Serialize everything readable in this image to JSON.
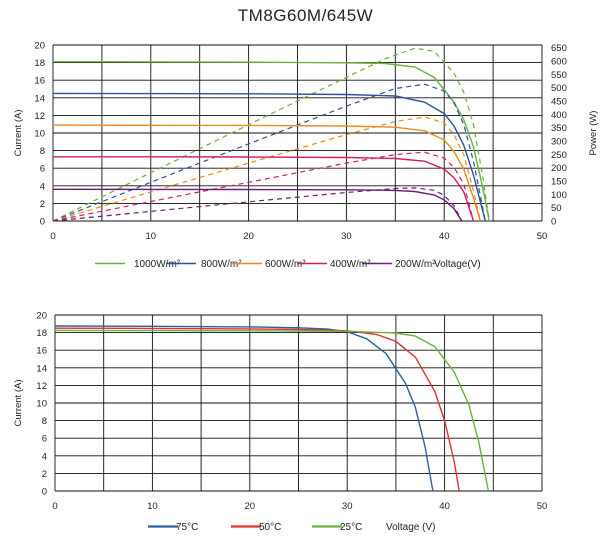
{
  "page_title": "TM8G60M/645W",
  "chart_data": [
    {
      "type": "line",
      "title": "TM8G60M/645W",
      "xlabel": "Voltage(V)",
      "ylabel": "Current (A)",
      "y2label": "Power (W)",
      "xlim": [
        0,
        50
      ],
      "ylim": [
        0,
        20
      ],
      "y2lim": [
        0,
        660
      ],
      "x_ticks": [
        "0",
        "10",
        "20",
        "30",
        "40",
        "50"
      ],
      "y_ticks": [
        "0",
        "2",
        "4",
        "6",
        "8",
        "10",
        "12",
        "14",
        "16",
        "18",
        "20"
      ],
      "y2_ticks": [
        "0",
        "50",
        "100",
        "150",
        "200",
        "250",
        "300",
        "350",
        "400",
        "450",
        "500",
        "550",
        "600",
        "650"
      ],
      "grid": true,
      "legend_position": "bottom",
      "series": [
        {
          "name": "1000W/m²",
          "color": "#6ab23e",
          "isc": 18.1,
          "voc": 44.6,
          "iv": [
            [
              0,
              18.1
            ],
            [
              10,
              18.08
            ],
            [
              20,
              18.05
            ],
            [
              30,
              17.98
            ],
            [
              34,
              17.9
            ],
            [
              37,
              17.5
            ],
            [
              39,
              16.3
            ],
            [
              41,
              13.5
            ],
            [
              42,
              11.5
            ],
            [
              43,
              8.4
            ],
            [
              44,
              3.5
            ],
            [
              44.6,
              0
            ]
          ],
          "pv": [
            [
              0,
              0
            ],
            [
              10,
              181
            ],
            [
              20,
              361
            ],
            [
              30,
              539
            ],
            [
              34,
              609
            ],
            [
              37,
              648
            ],
            [
              39,
              636
            ],
            [
              41,
              554
            ],
            [
              42,
              483
            ],
            [
              43,
              361
            ],
            [
              44,
              154
            ],
            [
              44.6,
              0
            ]
          ]
        },
        {
          "name": "800W/m²",
          "color": "#2d4fa0",
          "isc": 14.5,
          "voc": 44.2,
          "iv": [
            [
              0,
              14.5
            ],
            [
              10,
              14.48
            ],
            [
              20,
              14.45
            ],
            [
              30,
              14.38
            ],
            [
              35,
              14.2
            ],
            [
              38,
              13.5
            ],
            [
              40,
              12.2
            ],
            [
              41,
              10.8
            ],
            [
              42,
              8.6
            ],
            [
              43,
              5.2
            ],
            [
              44.2,
              0
            ]
          ],
          "pv": [
            [
              0,
              0
            ],
            [
              10,
              145
            ],
            [
              20,
              289
            ],
            [
              30,
              431
            ],
            [
              35,
              497
            ],
            [
              38,
              513
            ],
            [
              40,
              488
            ],
            [
              41,
              443
            ],
            [
              42,
              361
            ],
            [
              43,
              224
            ],
            [
              44.2,
              0
            ]
          ]
        },
        {
          "name": "600W/m²",
          "color": "#ef8a1a",
          "isc": 10.9,
          "voc": 43.7,
          "iv": [
            [
              0,
              10.9
            ],
            [
              10,
              10.88
            ],
            [
              20,
              10.86
            ],
            [
              30,
              10.8
            ],
            [
              35,
              10.66
            ],
            [
              38,
              10.25
            ],
            [
              40,
              9.2
            ],
            [
              41,
              7.9
            ],
            [
              42,
              5.9
            ],
            [
              43,
              2.6
            ],
            [
              43.7,
              0
            ]
          ],
          "pv": [
            [
              0,
              0
            ],
            [
              10,
              109
            ],
            [
              20,
              217
            ],
            [
              30,
              324
            ],
            [
              35,
              373
            ],
            [
              38,
              390
            ],
            [
              40,
              368
            ],
            [
              41,
              324
            ],
            [
              42,
              248
            ],
            [
              43,
              112
            ],
            [
              43.7,
              0
            ]
          ]
        },
        {
          "name": "400W/m²",
          "color": "#d81b60",
          "isc": 7.3,
          "voc": 43.0,
          "iv": [
            [
              0,
              7.3
            ],
            [
              10,
              7.29
            ],
            [
              20,
              7.27
            ],
            [
              30,
              7.22
            ],
            [
              35,
              7.1
            ],
            [
              38,
              6.8
            ],
            [
              40,
              5.9
            ],
            [
              41,
              4.9
            ],
            [
              42,
              3.3
            ],
            [
              43,
              0
            ]
          ],
          "pv": [
            [
              0,
              0
            ],
            [
              10,
              73
            ],
            [
              20,
              145
            ],
            [
              30,
              217
            ],
            [
              35,
              249
            ],
            [
              38,
              258
            ],
            [
              40,
              236
            ],
            [
              41,
              201
            ],
            [
              42,
              139
            ],
            [
              43,
              0
            ]
          ]
        },
        {
          "name": "200W/m²",
          "color": "#6a1b7a",
          "isc": 3.6,
          "voc": 41.8,
          "iv": [
            [
              0,
              3.6
            ],
            [
              10,
              3.59
            ],
            [
              20,
              3.58
            ],
            [
              30,
              3.55
            ],
            [
              35,
              3.48
            ],
            [
              37,
              3.35
            ],
            [
              39,
              2.95
            ],
            [
              40,
              2.4
            ],
            [
              41,
              1.4
            ],
            [
              41.8,
              0
            ]
          ],
          "pv": [
            [
              0,
              0
            ],
            [
              10,
              36
            ],
            [
              20,
              72
            ],
            [
              30,
              107
            ],
            [
              35,
              122
            ],
            [
              37,
              124
            ],
            [
              39,
              115
            ],
            [
              40,
              96
            ],
            [
              41,
              57
            ],
            [
              41.8,
              0
            ]
          ]
        }
      ]
    },
    {
      "type": "line",
      "title": "",
      "xlabel": "Voltage (V)",
      "ylabel": "Current (A)",
      "xlim": [
        0,
        50
      ],
      "ylim": [
        0,
        20
      ],
      "x_ticks": [
        "0",
        "10",
        "20",
        "30",
        "40",
        "50"
      ],
      "y_ticks": [
        "0",
        "2",
        "4",
        "6",
        "8",
        "10",
        "12",
        "14",
        "16",
        "18",
        "20"
      ],
      "grid": true,
      "legend_position": "bottom",
      "series": [
        {
          "name": "75°C",
          "color": "#2d5f9e",
          "iv": [
            [
              0,
              18.75
            ],
            [
              10,
              18.72
            ],
            [
              20,
              18.65
            ],
            [
              25,
              18.55
            ],
            [
              28,
              18.4
            ],
            [
              30,
              18.1
            ],
            [
              32,
              17.3
            ],
            [
              34,
              15.6
            ],
            [
              36,
              12.2
            ],
            [
              37,
              9.5
            ],
            [
              38,
              5.0
            ],
            [
              38.8,
              0
            ]
          ]
        },
        {
          "name": "50°C",
          "color": "#e03131",
          "iv": [
            [
              0,
              18.5
            ],
            [
              10,
              18.48
            ],
            [
              20,
              18.42
            ],
            [
              25,
              18.35
            ],
            [
              30,
              18.2
            ],
            [
              33,
              17.8
            ],
            [
              35,
              17.0
            ],
            [
              37,
              15.2
            ],
            [
              39,
              11.3
            ],
            [
              40,
              8.0
            ],
            [
              41,
              3.3
            ],
            [
              41.5,
              0
            ]
          ]
        },
        {
          "name": "25°C",
          "color": "#6ab23e",
          "iv": [
            [
              0,
              18.25
            ],
            [
              10,
              18.23
            ],
            [
              20,
              18.2
            ],
            [
              30,
              18.15
            ],
            [
              35,
              17.95
            ],
            [
              37,
              17.6
            ],
            [
              39,
              16.4
            ],
            [
              41,
              13.5
            ],
            [
              42.5,
              9.8
            ],
            [
              43.5,
              5.6
            ],
            [
              44.5,
              0
            ]
          ]
        }
      ]
    }
  ]
}
